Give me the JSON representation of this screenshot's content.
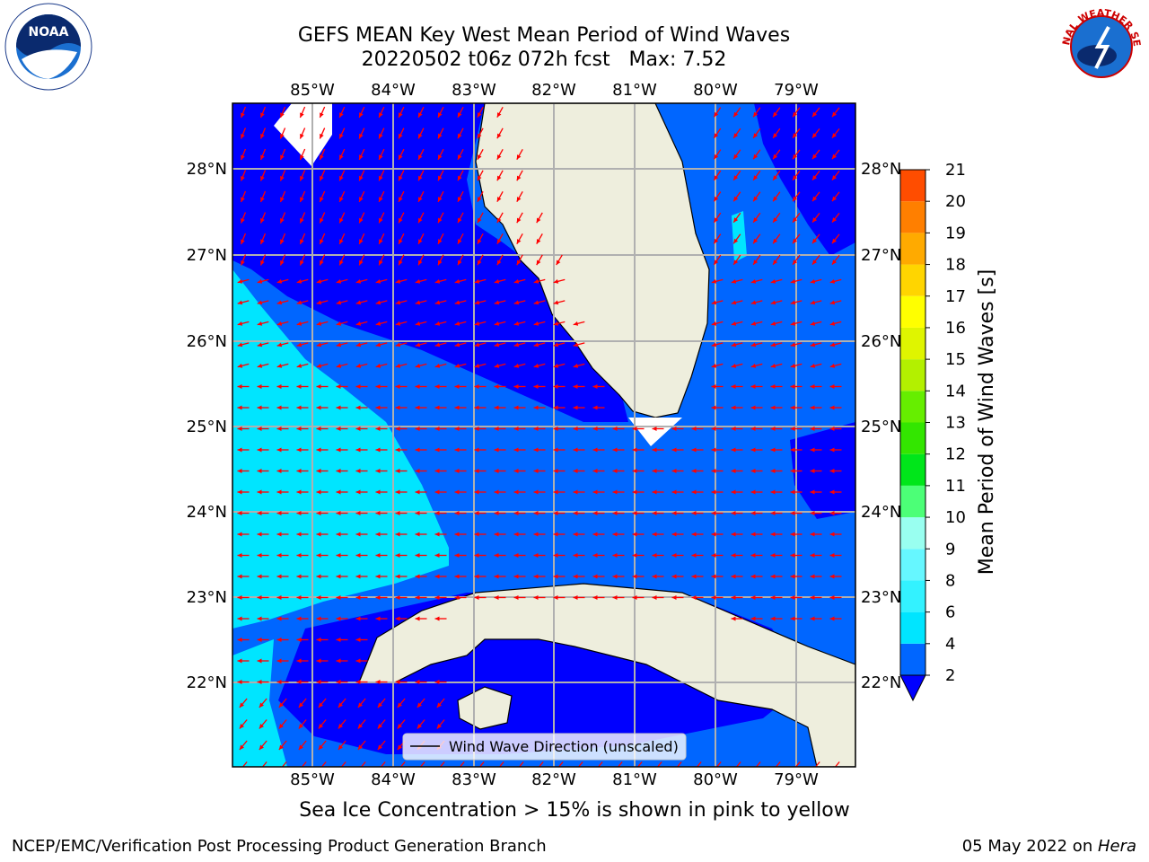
{
  "title": {
    "line1": "GEFS MEAN Key West Mean Period of Wind Waves",
    "line2": "20220502 t06z 072h fcst   Max: 7.52"
  },
  "map": {
    "lon_labels": [
      "85°W",
      "84°W",
      "83°W",
      "82°W",
      "81°W",
      "80°W",
      "79°W"
    ],
    "lat_labels": [
      "28°N",
      "27°N",
      "26°N",
      "25°N",
      "24°N",
      "23°N",
      "22°N"
    ],
    "legend_text": "Wind Wave Direction (unscaled)",
    "arrow_color": "#ff0000",
    "land_color": "#eeeedd"
  },
  "colorbar": {
    "label": "Mean Period of Wind Waves [s]",
    "ticks": [
      "2",
      "4",
      "6",
      "8",
      "9",
      "10",
      "11",
      "12",
      "13",
      "14",
      "15",
      "16",
      "17",
      "18",
      "19",
      "20",
      "21"
    ],
    "colors": [
      "#0066ff",
      "#00e5ff",
      "#33f2ff",
      "#66f7ff",
      "#99fff0",
      "#4cff77",
      "#00e61a",
      "#33e600",
      "#66ee00",
      "#b3f000",
      "#dff500",
      "#ffff00",
      "#ffd500",
      "#ffaa00",
      "#ff7f00",
      "#ff4d00",
      "#ff1a00"
    ],
    "under_color": "#0000ff"
  },
  "note": "Sea Ice Concentration > 15% is shown in pink to yellow",
  "footer": {
    "left": "NCEP/EMC/Verification Post Processing Product Generation Branch",
    "date": "05 May 2022 on ",
    "machine": "Hera"
  },
  "logos": {
    "left": "NOAA",
    "right": "NATIONAL WEATHER SERVICE"
  }
}
